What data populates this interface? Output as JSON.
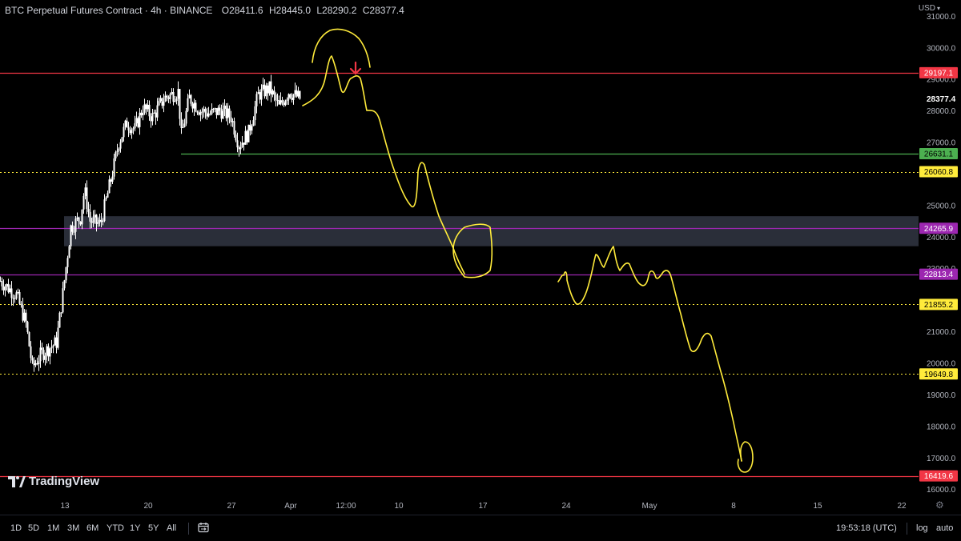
{
  "header": {
    "title": "BTC Perpetual Futures Contract · 4h · BINANCE",
    "open": "O28411.6",
    "high": "H28445.0",
    "low": "L28290.2",
    "close": "C28377.4"
  },
  "currency": "USD",
  "chart_data": {
    "type": "candlestick",
    "price_axis": {
      "range": [
        15700,
        31300
      ],
      "ticks": [
        "31000.0",
        "30000.0",
        "29000.0",
        "28000.0",
        "27000.0",
        "25000.0",
        "24000.0",
        "23000.0",
        "21000.0",
        "20000.0",
        "19000.0",
        "18000.0",
        "17000.0",
        "16000.0"
      ]
    },
    "time_axis": [
      "13",
      "20",
      "27",
      "Apr",
      "12:00",
      "10",
      "17",
      "24",
      "May",
      "8",
      "15",
      "22"
    ],
    "last_price": "28377.4",
    "levels": [
      {
        "label": "29197.1",
        "color": "#f23645",
        "style": "solid"
      },
      {
        "label": "26631.1",
        "color": "#4caf50",
        "style": "solid"
      },
      {
        "label": "26060.8",
        "color": "#ffeb3b",
        "style": "dotted"
      },
      {
        "label": "24265.9",
        "color": "#9c27b0",
        "style": "solid"
      },
      {
        "label": "22813.4",
        "color": "#9c27b0",
        "style": "solid"
      },
      {
        "label": "21855.2",
        "color": "#ffeb3b",
        "style": "dotted"
      },
      {
        "label": "19649.8",
        "color": "#ffeb3b",
        "style": "dotted"
      },
      {
        "label": "16419.6",
        "color": "#f23645",
        "style": "solid"
      }
    ],
    "zone": {
      "from": 23700,
      "to": 24650,
      "color": "#2a2e39"
    },
    "candle_color": "#ffffff"
  },
  "branding": {
    "logo_text": "TradingView"
  },
  "bottombar": {
    "ranges": [
      "1D",
      "5D",
      "1M",
      "3M",
      "6M",
      "YTD",
      "1Y",
      "5Y",
      "All"
    ],
    "clock": "19:53:18 (UTC)",
    "log": "log",
    "auto": "auto"
  },
  "icons": [
    "calendar-range-icon",
    "settings-gear-icon",
    "currency-caret-icon",
    "down-arrow-icon"
  ]
}
